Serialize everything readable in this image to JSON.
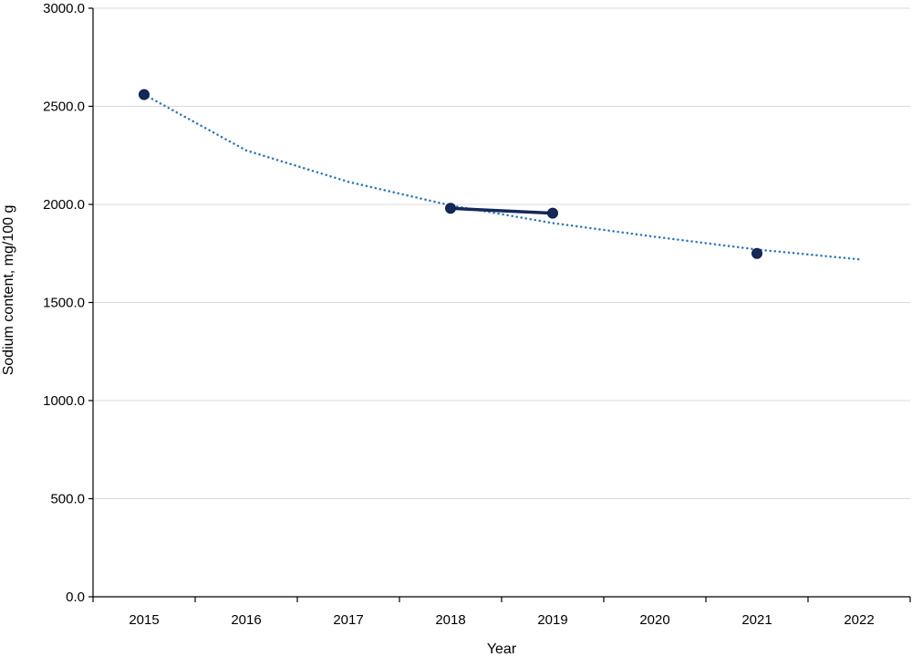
{
  "chart_data": {
    "type": "line",
    "title": "",
    "xlabel": "Year",
    "ylabel": "Sodium content, mg/100 g",
    "xlim": [
      2014.5,
      2022.5
    ],
    "ylim": [
      0,
      3000
    ],
    "y_ticks": [
      "0.0",
      "500.0",
      "1000.0",
      "1500.0",
      "2000.0",
      "2500.0",
      "3000.0"
    ],
    "y_tick_values": [
      0,
      500,
      1000,
      1500,
      2000,
      2500,
      3000
    ],
    "categories": [
      "2015",
      "2016",
      "2017",
      "2018",
      "2019",
      "2020",
      "2021",
      "2022"
    ],
    "grid": true,
    "legend": "none",
    "series": [
      {
        "x": [
          2015,
          2016,
          2017,
          2018,
          2019,
          2020,
          2021
        ],
        "values": [
          2560,
          null,
          null,
          1980,
          1955,
          null,
          1750
        ],
        "color": "#14285a"
      }
    ],
    "trendline": {
      "type": "logarithmic",
      "style": "dotted",
      "color": "#2e75b6",
      "x": [
        2015,
        2016,
        2017,
        2018,
        2019,
        2020,
        2021,
        2022
      ],
      "values": [
        2560,
        2275,
        2115,
        1995,
        1905,
        1835,
        1770,
        1720
      ]
    }
  }
}
